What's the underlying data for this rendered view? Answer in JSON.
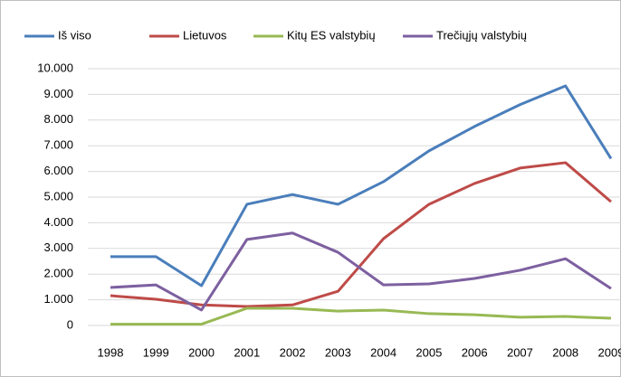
{
  "chart_data": {
    "type": "line",
    "categories": [
      "1998",
      "1999",
      "2000",
      "2001",
      "2002",
      "2003",
      "2004",
      "2005",
      "2006",
      "2007",
      "2008",
      "2009"
    ],
    "series": [
      {
        "name": "Iš viso",
        "color": "#4a7ebb",
        "values": [
          2680,
          2680,
          1550,
          4720,
          5100,
          4720,
          5600,
          6800,
          7750,
          8600,
          9330,
          6500
        ]
      },
      {
        "name": "Lietuvos",
        "color": "#be4b48",
        "values": [
          1160,
          1020,
          800,
          740,
          800,
          1330,
          3380,
          4720,
          5530,
          6130,
          6340,
          4820
        ]
      },
      {
        "name": "Kitų ES valstybių",
        "color": "#98b954",
        "values": [
          50,
          50,
          50,
          670,
          670,
          560,
          600,
          460,
          420,
          320,
          350,
          280
        ]
      },
      {
        "name": "Trečiųjų valstybių",
        "color": "#7d60a0",
        "values": [
          1480,
          1580,
          600,
          3350,
          3600,
          2850,
          1580,
          1620,
          1830,
          2150,
          2600,
          1440
        ]
      }
    ],
    "ylim": [
      0,
      10000
    ],
    "yticks": [
      0,
      {
        "value": 1000,
        "label": "1.000"
      },
      {
        "value": 2000,
        "label": "2.000"
      },
      {
        "value": 3000,
        "label": "3.000"
      },
      {
        "value": 4000,
        "label": "4.000"
      },
      {
        "value": 5000,
        "label": "5.000"
      },
      {
        "value": 6000,
        "label": "6.000"
      },
      {
        "value": 7000,
        "label": "7.000"
      },
      {
        "value": 8000,
        "label": "8.000"
      },
      {
        "value": 9000,
        "label": "9.000"
      },
      {
        "value": 10000,
        "label": "10.000"
      }
    ],
    "grid": true,
    "legend": "top"
  }
}
